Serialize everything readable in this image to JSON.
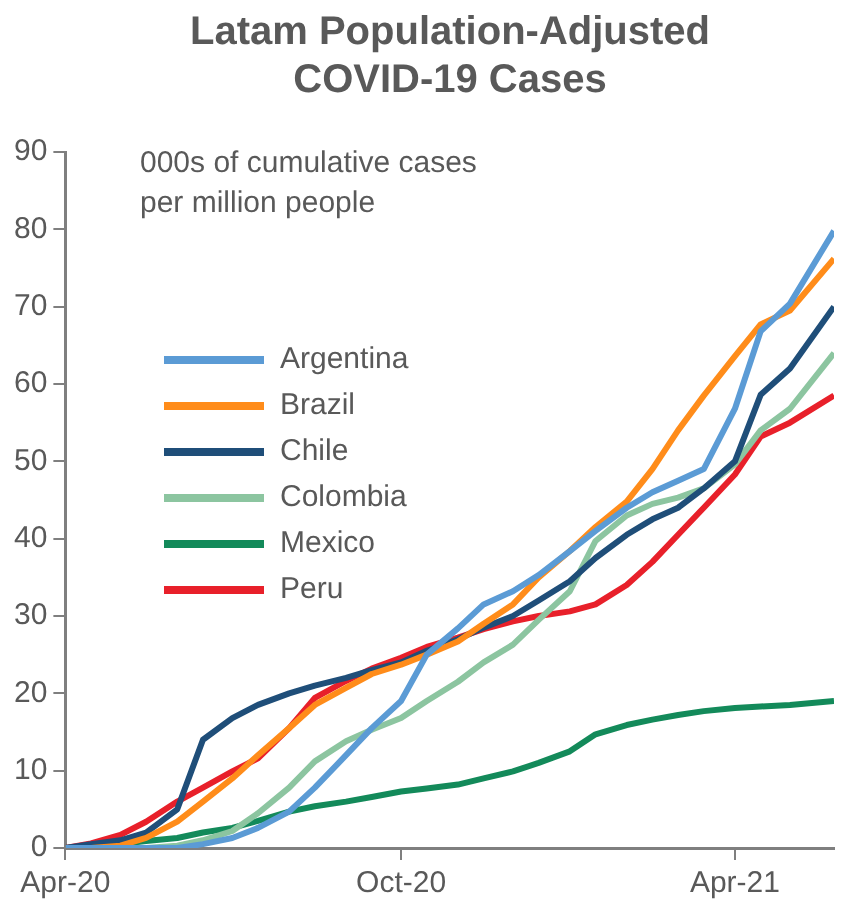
{
  "chart_data": {
    "type": "line",
    "title": "Latam Population-Adjusted COVID-19 Cases",
    "ylabel": "000s of cumulative cases per million people",
    "x": [
      "2020-04-01",
      "2020-04-15",
      "2020-05-01",
      "2020-05-15",
      "2020-06-01",
      "2020-06-15",
      "2020-07-01",
      "2020-07-15",
      "2020-08-01",
      "2020-08-15",
      "2020-09-01",
      "2020-09-15",
      "2020-10-01",
      "2020-10-15",
      "2020-11-01",
      "2020-11-15",
      "2020-12-01",
      "2020-12-15",
      "2021-01-01",
      "2021-01-15",
      "2021-02-01",
      "2021-02-15",
      "2021-03-01",
      "2021-03-15",
      "2021-04-01",
      "2021-04-15",
      "2021-05-01",
      "2021-05-25"
    ],
    "series": [
      {
        "name": "Argentina",
        "color": "#5b9bd5",
        "values": [
          0,
          0,
          0,
          0,
          0,
          0.5,
          1.3,
          2.6,
          4.7,
          7.8,
          12,
          15.5,
          19,
          25,
          28.4,
          31.5,
          33.2,
          35.3,
          38.4,
          41,
          44,
          46,
          47.5,
          49,
          56.8,
          66.8,
          70.4,
          79.8
        ]
      },
      {
        "name": "Brazil",
        "color": "#ff8c1a",
        "values": [
          0,
          0,
          0.3,
          1.3,
          3.4,
          6,
          9,
          12,
          15.5,
          18.5,
          20.7,
          22.5,
          23.7,
          25,
          26.7,
          29,
          31.5,
          35,
          38.4,
          41.5,
          44.8,
          49,
          54,
          58.5,
          63.6,
          67.7,
          69.5,
          76.2
        ]
      },
      {
        "name": "Chile",
        "color": "#1f4e79",
        "values": [
          0,
          0.5,
          1,
          2,
          5,
          14,
          16.8,
          18.5,
          20,
          21,
          22,
          23,
          24,
          25.5,
          27,
          28.5,
          30,
          32,
          34.5,
          37.5,
          40.5,
          42.5,
          44,
          46.5,
          50,
          58.6,
          62,
          70
        ]
      },
      {
        "name": "Colombia",
        "color": "#8cc5a0",
        "values": [
          0,
          0,
          0,
          0,
          0.3,
          1,
          2.2,
          4.5,
          7.8,
          11.2,
          13.8,
          15.3,
          16.8,
          19,
          21.5,
          24,
          26.3,
          29.5,
          33.2,
          39.7,
          43,
          44.5,
          45.3,
          46.5,
          49.6,
          54,
          56.8,
          64
        ]
      },
      {
        "name": "Mexico",
        "color": "#138a5a",
        "values": [
          0,
          0.2,
          0.5,
          0.9,
          1.3,
          2,
          2.6,
          3.5,
          4.7,
          5.4,
          6,
          6.6,
          7.3,
          7.7,
          8.2,
          9,
          9.9,
          11,
          12.5,
          14.7,
          15.9,
          16.6,
          17.2,
          17.7,
          18.1,
          18.3,
          18.5,
          19
        ]
      },
      {
        "name": "Peru",
        "color": "#e8202a",
        "values": [
          0,
          0.6,
          1.7,
          3.4,
          6,
          7.8,
          9.9,
          11.6,
          15.5,
          19.4,
          21.6,
          23.2,
          24.6,
          26,
          27.2,
          28.3,
          29.3,
          30,
          30.6,
          31.5,
          34,
          37,
          40.5,
          44,
          48.3,
          53.2,
          55,
          58.5
        ]
      }
    ],
    "xlim": [
      "2020-04-01",
      "2021-05-25"
    ],
    "xticks": [
      {
        "value": "2020-04-01",
        "label": "Apr-20"
      },
      {
        "value": "2020-10-01",
        "label": "Oct-20"
      },
      {
        "value": "2021-04-01",
        "label": "Apr-21"
      }
    ],
    "ylim": [
      0,
      90
    ],
    "yticks": [
      0,
      10,
      20,
      30,
      40,
      50,
      60,
      70,
      80,
      90
    ],
    "grid": false,
    "legend": "top left",
    "marker": "none",
    "line_style": "solid"
  }
}
